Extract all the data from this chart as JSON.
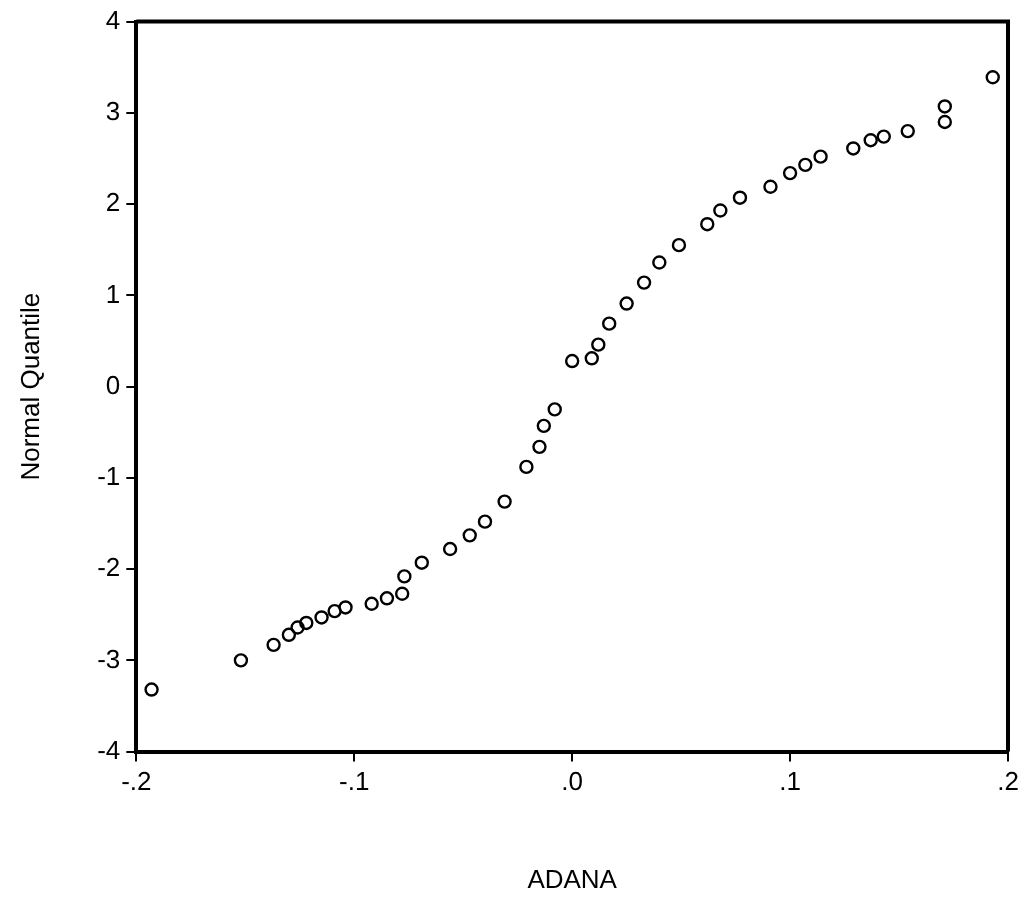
{
  "chart_data": {
    "type": "scatter",
    "xlabel": "ADANA",
    "ylabel": "Normal Quantile",
    "marker": "circle",
    "grid": false,
    "legend": false,
    "series": [
      {
        "color": "#000000",
        "x": [
          -0.193,
          -0.152,
          -0.137,
          -0.13,
          -0.126,
          -0.122,
          -0.115,
          -0.109,
          -0.104,
          -0.092,
          -0.085,
          -0.078,
          -0.077,
          -0.069,
          -0.056,
          -0.047,
          -0.04,
          -0.031,
          -0.021,
          -0.015,
          -0.013,
          -0.008,
          0.0,
          0.009,
          0.012,
          0.017,
          0.025,
          0.033,
          0.04,
          0.049,
          0.062,
          0.068,
          0.077,
          0.091,
          0.1,
          0.107,
          0.114,
          0.129,
          0.137,
          0.143,
          0.154,
          0.171,
          0.171,
          0.193
        ],
        "values": [
          -3.32,
          -3.0,
          -2.83,
          -2.72,
          -2.64,
          -2.59,
          -2.53,
          -2.46,
          -2.42,
          -2.38,
          -2.32,
          -2.27,
          -2.08,
          -1.93,
          -1.78,
          -1.63,
          -1.48,
          -1.26,
          -0.88,
          -0.66,
          -0.43,
          -0.25,
          0.28,
          0.31,
          0.46,
          0.69,
          0.91,
          1.14,
          1.36,
          1.55,
          1.78,
          1.93,
          2.07,
          2.19,
          2.34,
          2.43,
          2.52,
          2.61,
          2.7,
          2.74,
          2.8,
          2.9,
          3.07,
          3.39
        ]
      }
    ],
    "xlim": [
      -0.2,
      0.2
    ],
    "xticks": [
      {
        "value": -0.2,
        "label": "-.2"
      },
      {
        "value": -0.1,
        "label": "-.1"
      },
      {
        "value": 0,
        "label": ".0"
      },
      {
        "value": 0.1,
        "label": ".1"
      },
      {
        "value": 0.2,
        "label": ".2"
      }
    ],
    "ylim": [
      -4,
      4
    ],
    "yticks": [
      -4,
      -3,
      -2,
      -1,
      0,
      1,
      2,
      3,
      4
    ]
  }
}
